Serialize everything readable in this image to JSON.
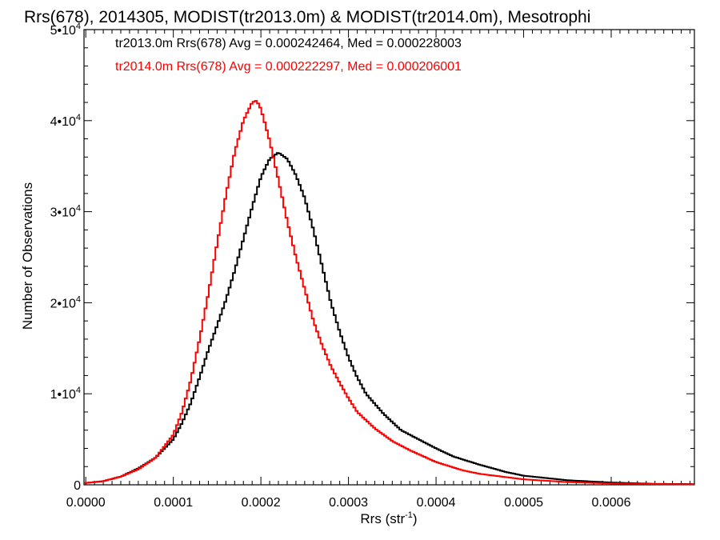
{
  "chart_data": {
    "type": "line",
    "title": "Rrs(678), 2014305, MODIST(tr2013.0m) & MODIST(tr2014.0m), Mesotrophi",
    "xlabel_main": "Rrs (str",
    "xlabel_sup": "-1",
    "xlabel_end": ")",
    "ylabel": "Number of Observations",
    "xlim": [
      -2e-06,
      0.000695
    ],
    "ylim": [
      0,
      50000
    ],
    "x_ticks": [
      0,
      0.0001,
      0.0002,
      0.0003,
      0.0004,
      0.0005,
      0.0006
    ],
    "x_tick_labels": [
      "0.0000",
      "0.0001",
      "0.0002",
      "0.0003",
      "0.0004",
      "0.0005",
      "0.0006"
    ],
    "y_ticks": [
      0,
      10000,
      20000,
      30000,
      40000,
      50000
    ],
    "y_tick_labels": [
      {
        "base": "0",
        "exp": ""
      },
      {
        "base": "1•10",
        "exp": "4"
      },
      {
        "base": "2•10",
        "exp": "4"
      },
      {
        "base": "3•10",
        "exp": "4"
      },
      {
        "base": "4•10",
        "exp": "4"
      },
      {
        "base": "5•10",
        "exp": "4"
      }
    ],
    "grid": false,
    "legend_position": "top-left",
    "series": [
      {
        "name": "tr2013.0m Rrs(678) Avg = 0.000242464, Med = 0.000228003",
        "color": "#000000",
        "points": [
          [
            0,
            200
          ],
          [
            2e-05,
            400
          ],
          [
            4e-05,
            900
          ],
          [
            6e-05,
            1800
          ],
          [
            8e-05,
            3000
          ],
          [
            0.0001,
            5000
          ],
          [
            0.00011,
            6800
          ],
          [
            0.00012,
            9000
          ],
          [
            0.00013,
            11800
          ],
          [
            0.00014,
            14800
          ],
          [
            0.00015,
            17500
          ],
          [
            0.00016,
            20300
          ],
          [
            0.00017,
            23500
          ],
          [
            0.00018,
            27000
          ],
          [
            0.00019,
            30500
          ],
          [
            0.0002,
            33800
          ],
          [
            0.00021,
            35800
          ],
          [
            0.00022,
            36500
          ],
          [
            0.00023,
            35800
          ],
          [
            0.00024,
            34000
          ],
          [
            0.00025,
            31500
          ],
          [
            0.00026,
            28000
          ],
          [
            0.00027,
            24000
          ],
          [
            0.00028,
            20000
          ],
          [
            0.00029,
            16800
          ],
          [
            0.0003,
            14000
          ],
          [
            0.00031,
            11800
          ],
          [
            0.00032,
            10000
          ],
          [
            0.00034,
            7800
          ],
          [
            0.00036,
            6000
          ],
          [
            0.00038,
            5000
          ],
          [
            0.0004,
            4000
          ],
          [
            0.00042,
            3100
          ],
          [
            0.00045,
            2200
          ],
          [
            0.00048,
            1400
          ],
          [
            0.0005,
            1000
          ],
          [
            0.00055,
            500
          ],
          [
            0.0006,
            250
          ],
          [
            0.00065,
            100
          ],
          [
            0.00069,
            80
          ]
        ]
      },
      {
        "name": "tr2014.0m Rrs(678) Avg = 0.000222297, Med = 0.000206001",
        "color": "#ff0000",
        "points": [
          [
            0,
            200
          ],
          [
            2e-05,
            400
          ],
          [
            4e-05,
            900
          ],
          [
            6e-05,
            1700
          ],
          [
            8e-05,
            3000
          ],
          [
            0.0001,
            5500
          ],
          [
            0.00011,
            8000
          ],
          [
            0.00012,
            11500
          ],
          [
            0.00013,
            16000
          ],
          [
            0.00014,
            21000
          ],
          [
            0.00015,
            26500
          ],
          [
            0.00016,
            31800
          ],
          [
            0.00017,
            36500
          ],
          [
            0.00018,
            40000
          ],
          [
            0.00019,
            42000
          ],
          [
            0.000195,
            42200
          ],
          [
            0.0002,
            41300
          ],
          [
            0.00021,
            37800
          ],
          [
            0.00022,
            33500
          ],
          [
            0.00023,
            29000
          ],
          [
            0.00024,
            25000
          ],
          [
            0.00025,
            21500
          ],
          [
            0.00026,
            18000
          ],
          [
            0.00027,
            15300
          ],
          [
            0.00028,
            13000
          ],
          [
            0.00029,
            11200
          ],
          [
            0.0003,
            9500
          ],
          [
            0.00031,
            8000
          ],
          [
            0.00033,
            6200
          ],
          [
            0.00035,
            4800
          ],
          [
            0.00037,
            3800
          ],
          [
            0.0004,
            2500
          ],
          [
            0.00043,
            1600
          ],
          [
            0.00045,
            1200
          ],
          [
            0.0005,
            600
          ],
          [
            0.00055,
            300
          ],
          [
            0.0006,
            150
          ],
          [
            0.00065,
            80
          ],
          [
            0.00069,
            50
          ]
        ]
      }
    ]
  }
}
